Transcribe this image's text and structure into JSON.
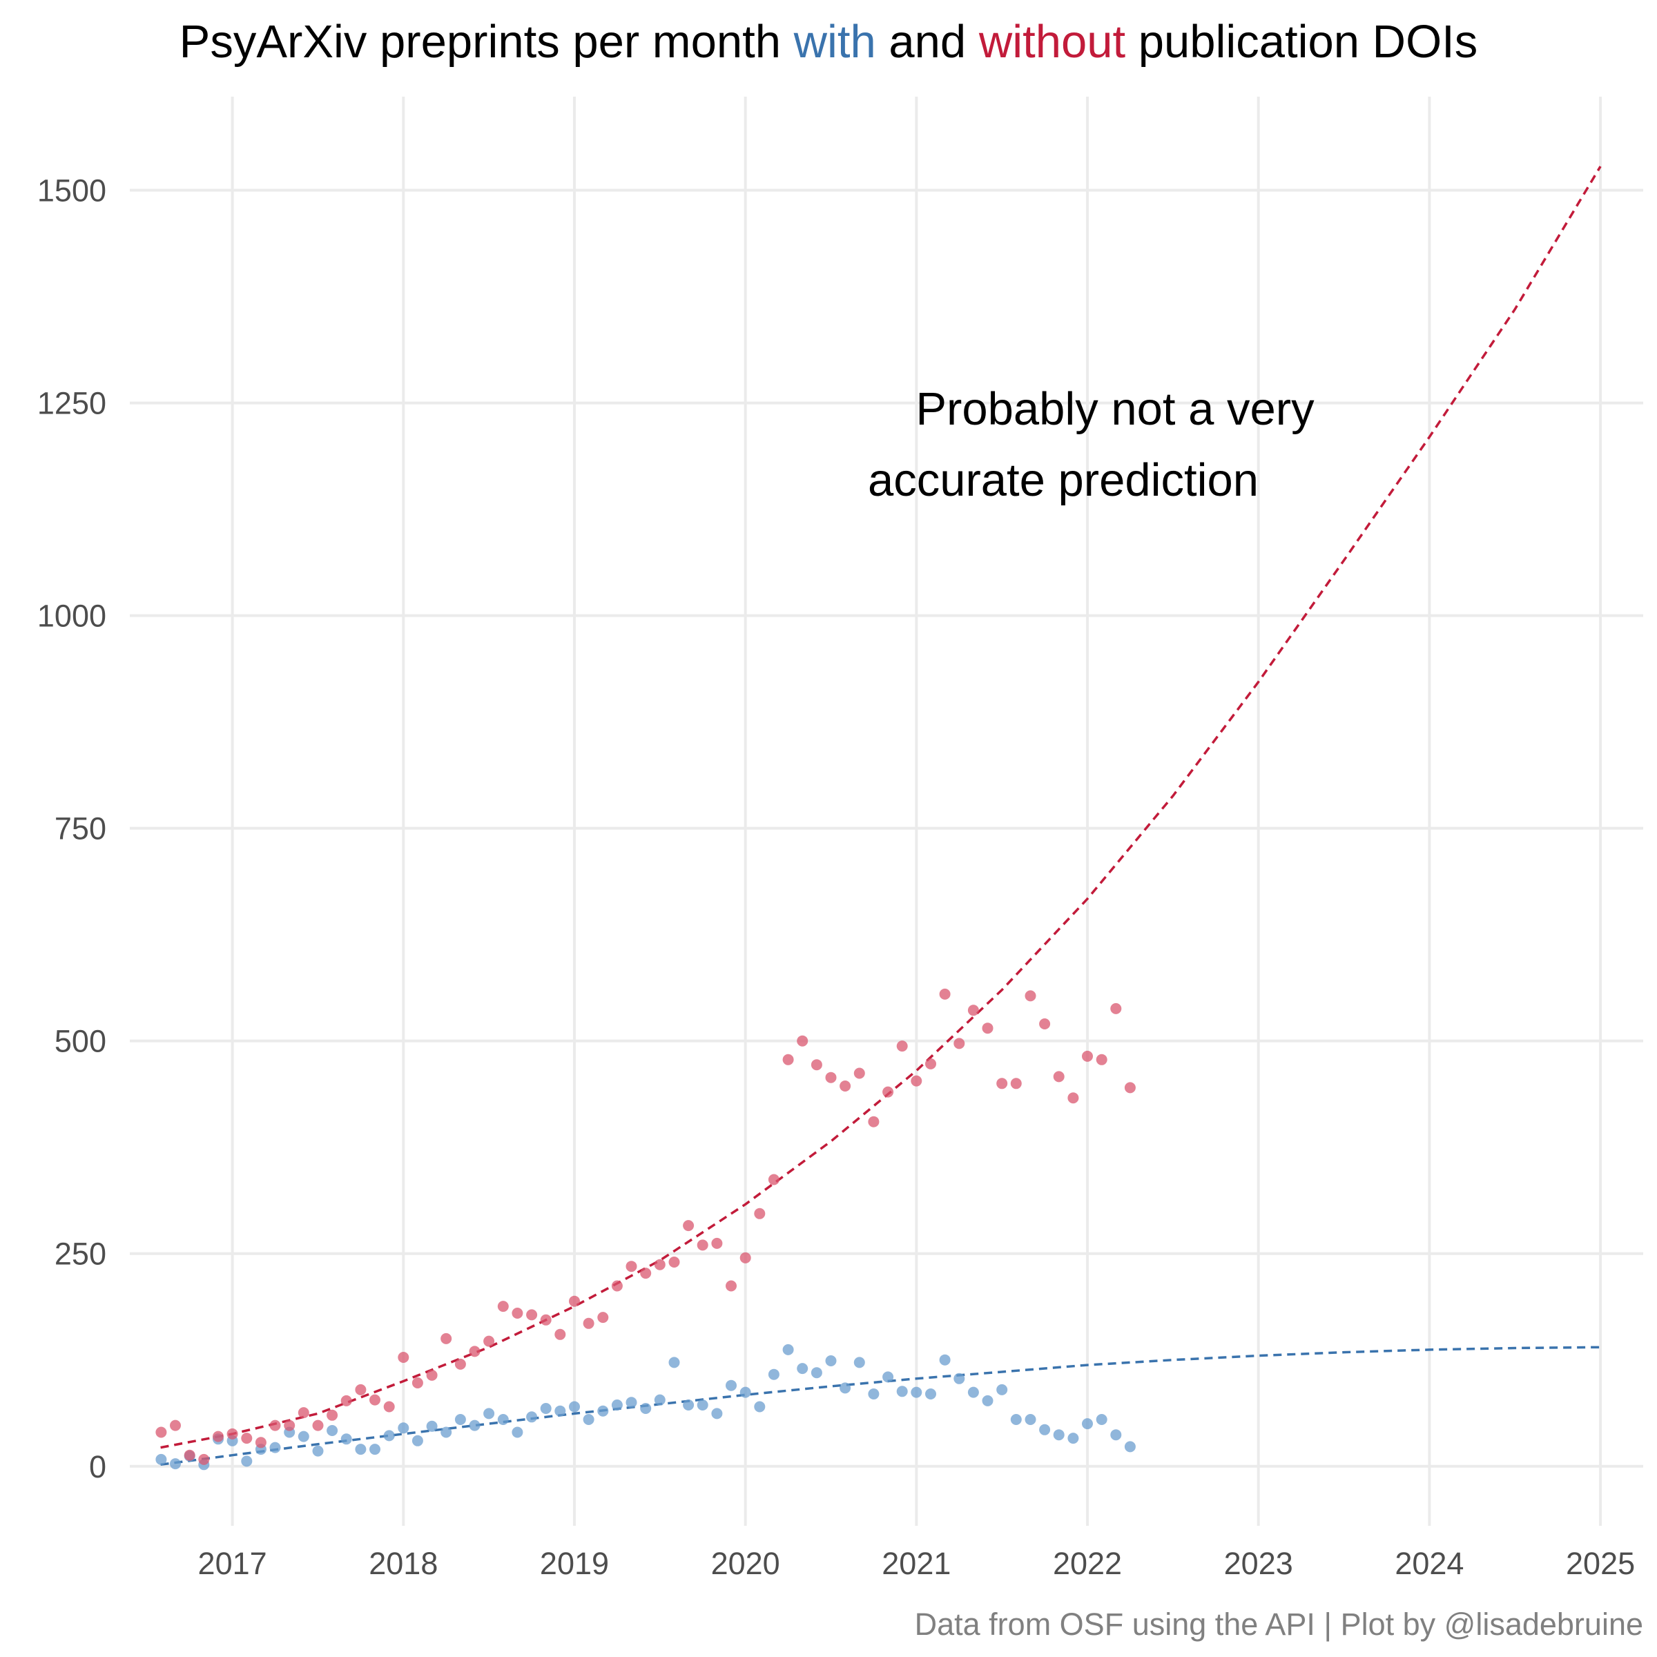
{
  "title": {
    "part1": "PsyArXiv preprints per month ",
    "with_word": "with",
    "part2": " and ",
    "without_word": "without",
    "part3": " publication DOIs"
  },
  "annotation": {
    "line1": "Probably not a very",
    "line2": "accurate prediction"
  },
  "caption": "Data from OSF using the API | Plot by @lisadebruine",
  "colors": {
    "with": "#3a73ad",
    "without": "#c21b3a",
    "with_points": "#6b9dcf",
    "without_points": "#d9576f"
  },
  "chart_data": {
    "type": "scatter",
    "xlim": [
      2016.4,
      2025.25
    ],
    "ylim": [
      -70,
      1610
    ],
    "x_ticks": [
      2017,
      2018,
      2019,
      2020,
      2021,
      2022,
      2023,
      2024,
      2025
    ],
    "x_tick_labels": [
      "2017",
      "2018",
      "2019",
      "2020",
      "2021",
      "2022",
      "2023",
      "2024",
      "2025"
    ],
    "y_ticks": [
      0,
      250,
      500,
      750,
      1000,
      1250,
      1500
    ],
    "y_tick_labels": [
      "0",
      "250",
      "500",
      "750",
      "1000",
      "1250",
      "1500"
    ],
    "grid": true,
    "x_months": [
      "2016-08",
      "2016-09",
      "2016-10",
      "2016-11",
      "2016-12",
      "2017-01",
      "2017-02",
      "2017-03",
      "2017-04",
      "2017-05",
      "2017-06",
      "2017-07",
      "2017-08",
      "2017-09",
      "2017-10",
      "2017-11",
      "2017-12",
      "2018-01",
      "2018-02",
      "2018-03",
      "2018-04",
      "2018-05",
      "2018-06",
      "2018-07",
      "2018-08",
      "2018-09",
      "2018-10",
      "2018-11",
      "2018-12",
      "2019-01",
      "2019-02",
      "2019-03",
      "2019-04",
      "2019-05",
      "2019-06",
      "2019-07",
      "2019-08",
      "2019-09",
      "2019-10",
      "2019-11",
      "2019-12",
      "2020-01",
      "2020-02",
      "2020-03",
      "2020-04",
      "2020-05",
      "2020-06",
      "2020-07",
      "2020-08",
      "2020-09",
      "2020-10",
      "2020-11",
      "2020-12",
      "2021-01",
      "2021-02",
      "2021-03",
      "2021-04",
      "2021-05",
      "2021-06",
      "2021-07",
      "2021-08",
      "2021-09",
      "2021-10",
      "2021-11",
      "2021-12",
      "2022-01",
      "2022-02",
      "2022-03",
      "2022-04"
    ],
    "series": [
      {
        "values": [
          8,
          3,
          12,
          2,
          32,
          30,
          6,
          20,
          22,
          40,
          35,
          18,
          42,
          32,
          20,
          20,
          36,
          45,
          30,
          47,
          40,
          55,
          48,
          62,
          55,
          40,
          58,
          68,
          65,
          70,
          55,
          65,
          72,
          75,
          68,
          78,
          122,
          72,
          72,
          62,
          95,
          87,
          70,
          108,
          137,
          115,
          110,
          124,
          92,
          122,
          85,
          105,
          88,
          87,
          85,
          125,
          103,
          87,
          77,
          90,
          55,
          55,
          43,
          37,
          33,
          50,
          55,
          37,
          23
        ],
        "trend": {
          "type": "dashed",
          "x": [
            2016.58,
            2017,
            2017.5,
            2018,
            2018.5,
            2019,
            2019.5,
            2020,
            2020.5,
            2021,
            2021.5,
            2022,
            2022.5,
            2023,
            2023.5,
            2024,
            2024.5,
            2025
          ],
          "y": [
            2,
            13,
            26,
            38,
            50,
            62,
            73,
            84,
            94,
            103,
            111,
            119,
            125,
            130,
            134,
            137,
            139,
            140
          ]
        }
      },
      {
        "values": [
          40,
          48,
          13,
          8,
          35,
          38,
          33,
          28,
          48,
          48,
          63,
          48,
          60,
          77,
          90,
          78,
          70,
          128,
          98,
          107,
          150,
          120,
          135,
          147,
          188,
          180,
          178,
          172,
          155,
          194,
          168,
          175,
          212,
          235,
          227,
          237,
          240,
          283,
          260,
          262,
          212,
          245,
          297,
          337,
          478,
          500,
          472,
          457,
          447,
          462,
          405,
          440,
          494,
          453,
          473,
          555,
          497,
          536,
          515,
          450,
          450,
          553,
          520,
          458,
          433,
          482,
          478,
          538,
          445
        ],
        "trend": {
          "type": "dashed",
          "x": [
            2016.58,
            2017,
            2017.5,
            2018,
            2018.5,
            2019,
            2019.5,
            2020,
            2020.5,
            2021,
            2021.5,
            2022,
            2022.5,
            2023,
            2023.5,
            2024,
            2024.5,
            2025
          ],
          "y": [
            22,
            38,
            62,
            100,
            140,
            188,
            242,
            308,
            382,
            465,
            560,
            667,
            788,
            922,
            1065,
            1210,
            1360,
            1528
          ]
        }
      }
    ]
  }
}
